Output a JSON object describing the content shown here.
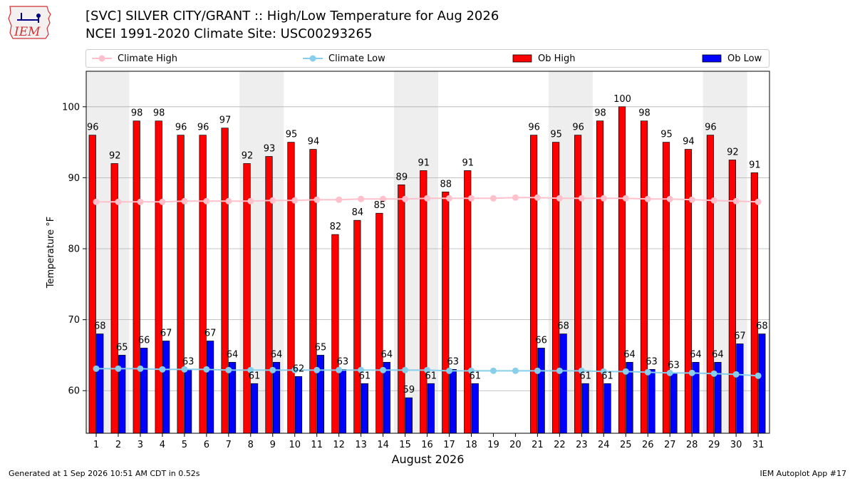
{
  "logo": {
    "text": "IEM"
  },
  "header": {
    "title": "[SVC] SILVER CITY/GRANT :: High/Low Temperature for Aug 2026",
    "subtitle": "NCEI 1991-2020 Climate Site: USC00293265"
  },
  "legend": {
    "climate_high": "Climate High",
    "climate_low": "Climate Low",
    "ob_high": "Ob High",
    "ob_low": "Ob Low"
  },
  "footer": {
    "generated": "Generated at 1 Sep 2026 10:51 AM CDT in 0.52s",
    "app": "IEM Autoplot App #17"
  },
  "chart_data": {
    "type": "bar",
    "xlabel": "August 2026",
    "ylabel": "Temperature °F",
    "ylim": [
      54,
      105
    ],
    "yticks": [
      60,
      70,
      80,
      90,
      100
    ],
    "grid": true,
    "legend_position": "top",
    "weekend_shading_days": [
      1,
      2,
      8,
      9,
      15,
      16,
      22,
      23,
      29,
      30
    ],
    "categories": [
      1,
      2,
      3,
      4,
      5,
      6,
      7,
      8,
      9,
      10,
      11,
      12,
      13,
      14,
      15,
      16,
      17,
      18,
      19,
      20,
      21,
      22,
      23,
      24,
      25,
      26,
      27,
      28,
      29,
      30,
      31
    ],
    "colors": {
      "ob_high": "#ff0000",
      "ob_low": "#0000ff",
      "climate_high": "#ffc0cb",
      "climate_low": "#87ceeb",
      "weekend": "#eeeeee"
    },
    "series": [
      {
        "name": "Ob High",
        "values": [
          96,
          92,
          98,
          98,
          96,
          96,
          97,
          92,
          93,
          95,
          94,
          82,
          84,
          85,
          89,
          91,
          88,
          91,
          null,
          null,
          96,
          95,
          96,
          98,
          100,
          98,
          95,
          94,
          96,
          92.5,
          90.7
        ]
      },
      {
        "name": "Ob Low",
        "values": [
          68,
          65,
          66,
          67,
          63,
          67,
          64,
          61,
          64,
          62,
          65,
          63,
          61,
          64,
          59,
          61,
          63,
          61,
          null,
          null,
          66,
          68,
          61,
          61,
          64,
          63,
          62.5,
          64,
          64,
          66.6,
          68
        ]
      },
      {
        "name": "Climate High",
        "values": [
          86.6,
          86.6,
          86.6,
          86.6,
          86.7,
          86.7,
          86.7,
          86.7,
          86.8,
          86.8,
          86.9,
          86.9,
          87.0,
          87.0,
          87.0,
          87.1,
          87.1,
          87.1,
          87.1,
          87.2,
          87.2,
          87.1,
          87.1,
          87.1,
          87.1,
          87.0,
          87.0,
          86.9,
          86.8,
          86.7,
          86.6
        ]
      },
      {
        "name": "Climate Low",
        "values": [
          63.1,
          63.1,
          63.1,
          63.0,
          63.0,
          63.0,
          62.9,
          62.9,
          62.9,
          62.9,
          62.9,
          62.9,
          62.9,
          62.9,
          62.9,
          62.9,
          62.8,
          62.8,
          62.8,
          62.8,
          62.8,
          62.8,
          62.8,
          62.7,
          62.7,
          62.6,
          62.5,
          62.5,
          62.4,
          62.3,
          62.1
        ]
      }
    ],
    "high_labels": [
      "96",
      "92",
      "98",
      "98",
      "96",
      "96",
      "97",
      "92",
      "93",
      "95",
      "94",
      "82",
      "84",
      "85",
      "89",
      "91",
      "88",
      "91",
      "",
      "",
      "96",
      "95",
      "96",
      "98",
      "100",
      "98",
      "95",
      "94",
      "96",
      "92",
      "91"
    ],
    "low_labels": [
      "68",
      "65",
      "66",
      "67",
      "63",
      "67",
      "64",
      "61",
      "64",
      "62",
      "65",
      "63",
      "61",
      "64",
      "59",
      "61",
      "63",
      "61",
      "",
      "",
      "66",
      "68",
      "61",
      "61",
      "64",
      "63",
      "63",
      "64",
      "64",
      "67",
      "68"
    ]
  }
}
